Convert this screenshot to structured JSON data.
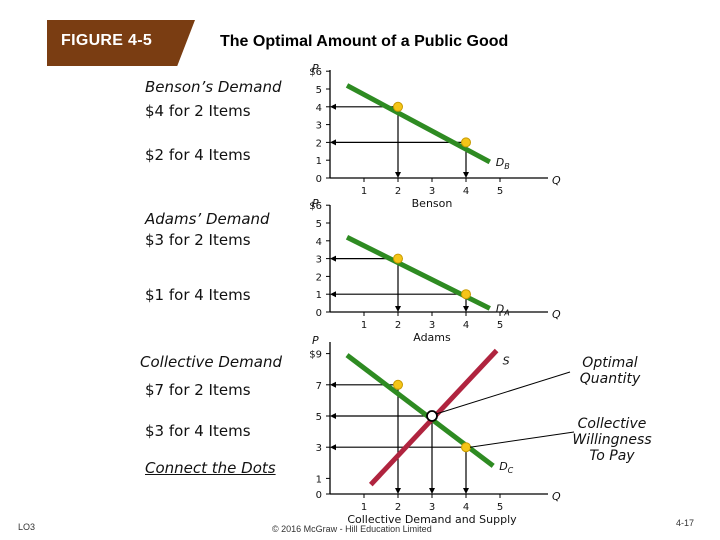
{
  "figure_label": "FIGURE 4-5",
  "title": "The Optimal Amount of a Public Good",
  "left_labels": {
    "benson_heading": "Benson’s Demand",
    "benson_1": "$4 for 2 Items",
    "benson_2": "$2 for 4 Items",
    "adams_heading": "Adams’ Demand",
    "adams_1": "$3 for 2 Items",
    "adams_2": "$1 for 4 Items",
    "collective_heading": "Collective Demand",
    "collective_1": "$7 for 2 Items",
    "collective_2": "$3 for 4 Items",
    "connect": "Connect the Dots"
  },
  "annotations": {
    "optimal_quantity": "Optimal Quantity",
    "collective_willingness": "Collective Willingness To Pay"
  },
  "footer": {
    "lo": "LO3",
    "copyright": "© 2016 McGraw - Hill Education Limited",
    "page": "4-17"
  },
  "colors": {
    "demand": "#2e8b22",
    "supply": "#b0243f",
    "dot": "#f5c518",
    "tab": "#7a3d12"
  },
  "chart_data": [
    {
      "type": "line",
      "xlabel": "Benson",
      "x_axis_symbol": "Q",
      "y_axis_symbol": "P",
      "x_ticks": [
        "1",
        "2",
        "3",
        "4",
        "5"
      ],
      "y_ticks": [
        "0",
        "1",
        "2",
        "3",
        "4",
        "5",
        "$6"
      ],
      "xlim": [
        0,
        5.5
      ],
      "ylim": [
        0,
        6
      ],
      "series": [
        {
          "name": "DB",
          "x": [
            0.5,
            4.7
          ],
          "y": [
            5.2,
            0.9
          ],
          "kind": "demand"
        }
      ],
      "points": [
        {
          "x": 2,
          "y": 4
        },
        {
          "x": 4,
          "y": 2
        }
      ]
    },
    {
      "type": "line",
      "xlabel": "Adams",
      "x_axis_symbol": "Q",
      "y_axis_symbol": "P",
      "x_ticks": [
        "1",
        "2",
        "3",
        "4",
        "5"
      ],
      "y_ticks": [
        "0",
        "1",
        "2",
        "3",
        "4",
        "5",
        "$6"
      ],
      "xlim": [
        0,
        5.5
      ],
      "ylim": [
        0,
        6
      ],
      "series": [
        {
          "name": "DA",
          "x": [
            0.5,
            4.7
          ],
          "y": [
            4.2,
            0.2
          ],
          "kind": "demand"
        }
      ],
      "points": [
        {
          "x": 2,
          "y": 3
        },
        {
          "x": 4,
          "y": 1
        }
      ]
    },
    {
      "type": "line",
      "xlabel": "Collective Demand and Supply",
      "x_axis_symbol": "Q",
      "y_axis_symbol": "P",
      "x_ticks": [
        "1",
        "2",
        "3",
        "4",
        "5"
      ],
      "y_ticks": [
        "0",
        "1",
        "3",
        "5",
        "7",
        "$9"
      ],
      "xlim": [
        0,
        5.5
      ],
      "ylim": [
        0,
        9
      ],
      "series": [
        {
          "name": "DC",
          "x": [
            0.5,
            4.8
          ],
          "y": [
            8.9,
            1.8
          ],
          "kind": "demand"
        },
        {
          "name": "S",
          "x": [
            1.2,
            4.9
          ],
          "y": [
            0.6,
            9.2
          ],
          "kind": "supply"
        }
      ],
      "points": [
        {
          "x": 2,
          "y": 7
        },
        {
          "x": 3,
          "y": 5
        },
        {
          "x": 4,
          "y": 3
        }
      ],
      "equilibrium": {
        "x": 3,
        "y": 5
      }
    }
  ]
}
